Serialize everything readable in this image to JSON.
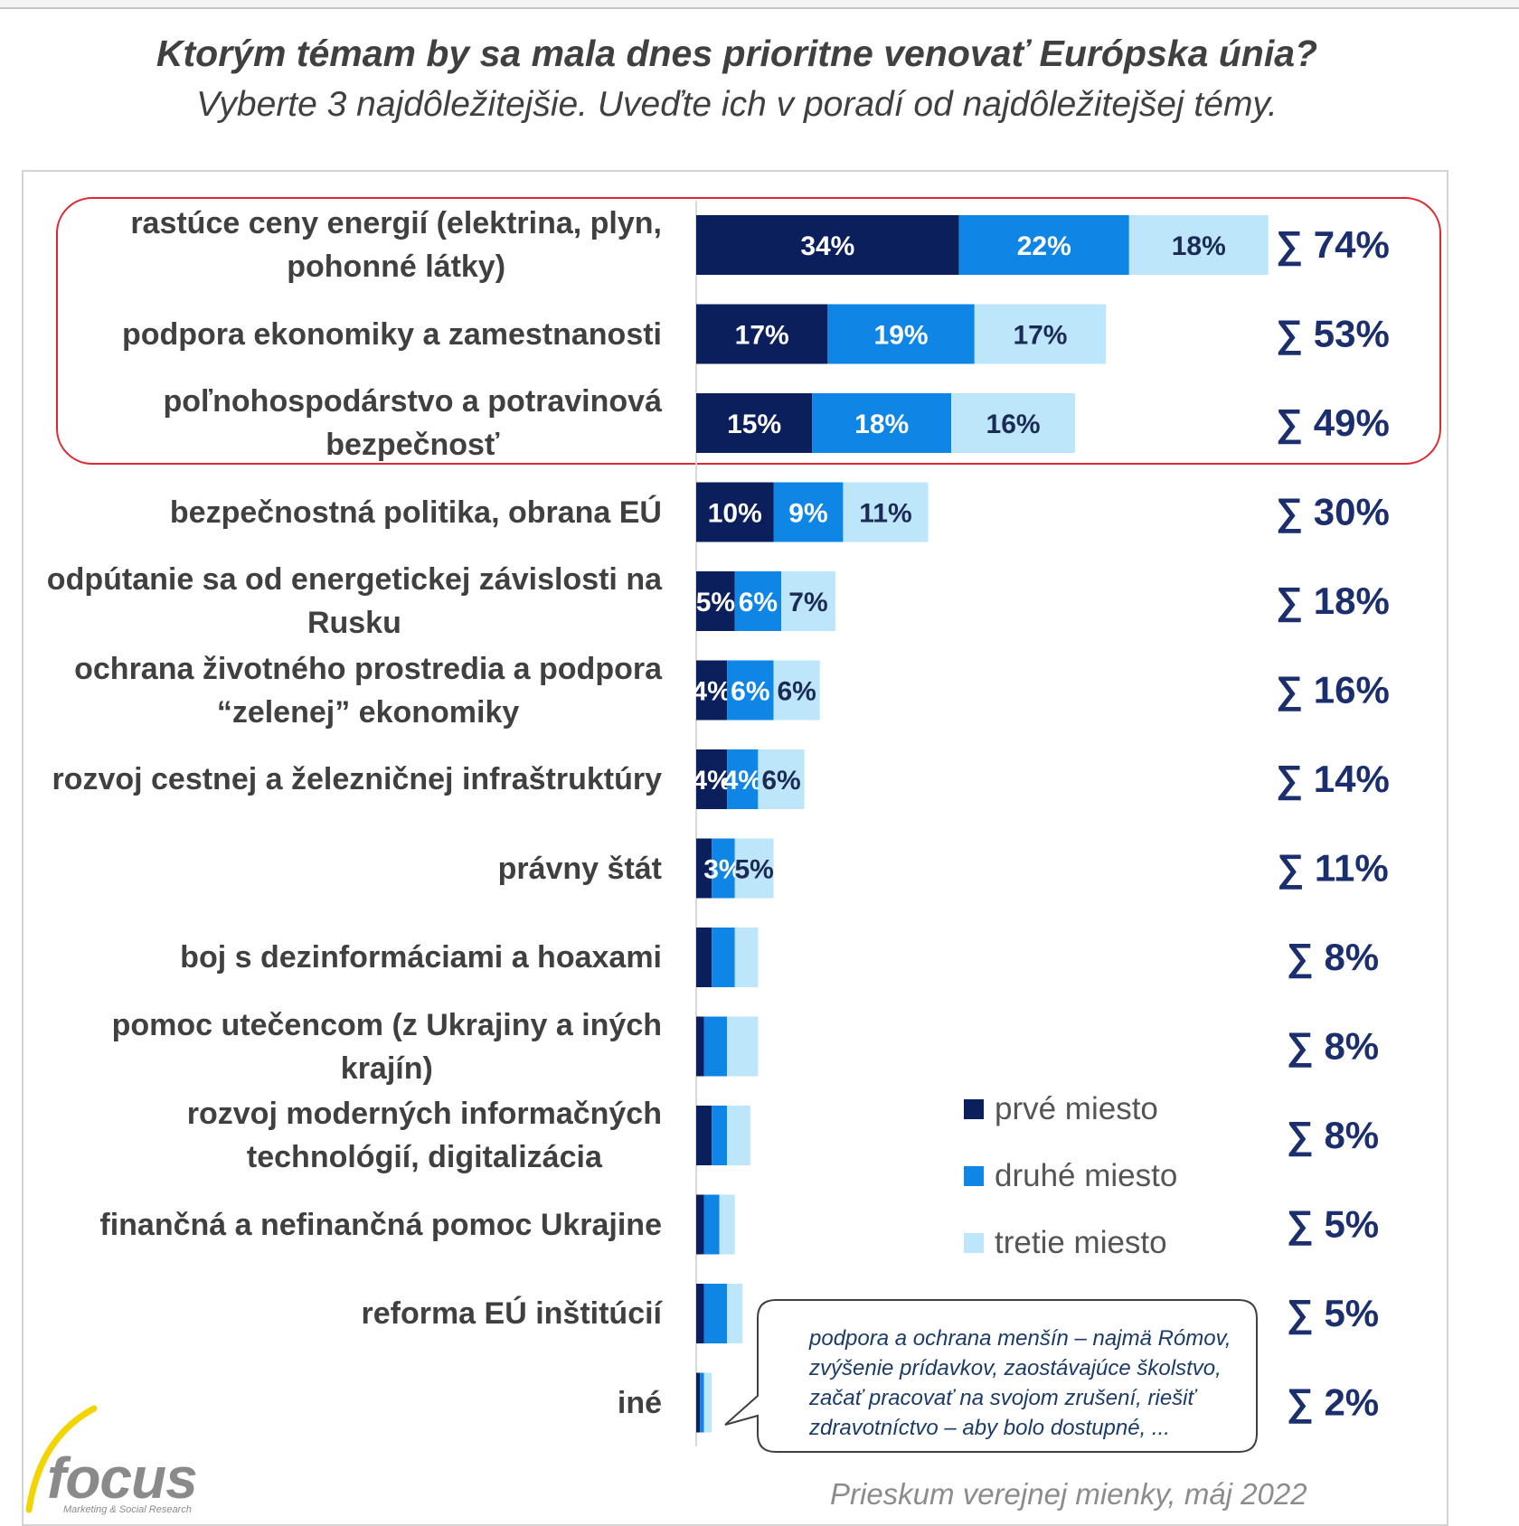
{
  "title": "Ktorým témam by sa mala dnes prioritne venovať Európska únia?",
  "subtitle": "Vyberte 3 najdôležitejšie. Uveďte ich v poradí od najdôležitejšej témy.",
  "colors": {
    "first": "#0b1f5c",
    "second": "#0f86e6",
    "third": "#bde6fb",
    "sum_text": "#1b2e6d",
    "highlight_border": "#e0262f"
  },
  "legend": [
    {
      "label": "prvé miesto",
      "color": "#0b1f5c"
    },
    {
      "label": "druhé miesto",
      "color": "#0f86e6"
    },
    {
      "label": "tretie miesto",
      "color": "#bde6fb"
    }
  ],
  "callout_text": "podpora a ochrana menšín – najmä Rómov, zvýšenie prídavkov, zaostávajúce školstvo, začať pracovať na svojom zrušení, riešiť zdravotníctvo – aby bolo dostupné, ...",
  "source": "Prieskum verejnej mienky, máj 2022",
  "logo": {
    "name": "focus",
    "tagline": "Marketing & Social Research"
  },
  "chart_data": {
    "type": "bar",
    "orientation": "horizontal",
    "stacked": true,
    "categories": [
      "rastúce ceny energií (elektrina, plyn, pohonné látky)",
      "podpora ekonomiky a zamestnanosti",
      "poľnohospodárstvo a potravinová bezpečnosť",
      "bezpečnostná politika, obrana EÚ",
      "odpútanie sa od energetickej závislosti na Rusku",
      "ochrana životného prostredia a podpora “zelenej” ekonomiky",
      "rozvoj cestnej a železničnej infraštruktúry",
      "právny štát",
      "boj s dezinformáciami a hoaxami",
      "pomoc utečencom (z Ukrajiny a iných krajín)",
      "rozvoj moderných informačných technológií, digitalizácia",
      "finančná a nefinančná pomoc Ukrajine",
      "reforma EÚ inštitúcií",
      "iné"
    ],
    "category_lines": [
      [
        "rastúce ceny energií (elektrina, plyn,",
        "pohonné látky)"
      ],
      [
        "podpora ekonomiky a zamestnanosti"
      ],
      [
        "poľnohospodárstvo a potravinová",
        "bezpečnosť"
      ],
      [
        "bezpečnostná politika, obrana EÚ"
      ],
      [
        "odpútanie sa od energetickej závislosti na",
        "Rusku"
      ],
      [
        "ochrana životného prostredia a podpora",
        "“zelenej” ekonomiky"
      ],
      [
        "rozvoj cestnej a železničnej infraštruktúry"
      ],
      [
        "právny štát"
      ],
      [
        "boj s dezinformáciami a hoaxami"
      ],
      [
        "pomoc utečencom (z Ukrajiny a iných",
        "krajín)"
      ],
      [
        "rozvoj moderných informačných",
        "technológií, digitalizácia"
      ],
      [
        "finančná a nefinančná pomoc Ukrajine"
      ],
      [
        "reforma EÚ inštitúcií"
      ],
      [
        "iné"
      ]
    ],
    "series": [
      {
        "name": "prvé miesto",
        "values": [
          34,
          17,
          15,
          10,
          5,
          4,
          4,
          2,
          2,
          1,
          2,
          1,
          1,
          0.5
        ]
      },
      {
        "name": "druhé miesto",
        "values": [
          22,
          19,
          18,
          9,
          6,
          6,
          4,
          3,
          3,
          3,
          2,
          2,
          3,
          0.5
        ]
      },
      {
        "name": "tretie miesto",
        "values": [
          18,
          17,
          16,
          11,
          7,
          6,
          6,
          5,
          3,
          4,
          3,
          2,
          2,
          1
        ]
      }
    ],
    "value_labels": [
      [
        "34%",
        "22%",
        "18%"
      ],
      [
        "17%",
        "19%",
        "17%"
      ],
      [
        "15%",
        "18%",
        "16%"
      ],
      [
        "10%",
        "9%",
        "11%"
      ],
      [
        "5%",
        "6%",
        "7%"
      ],
      [
        "4%",
        "6%",
        "6%"
      ],
      [
        "4%",
        "4%",
        "6%"
      ],
      [
        "",
        "3%",
        "5%"
      ],
      [
        "",
        "",
        ""
      ],
      [
        "",
        "",
        ""
      ],
      [
        "",
        "",
        ""
      ],
      [
        "",
        "",
        ""
      ],
      [
        "",
        "",
        ""
      ],
      [
        "",
        "",
        ""
      ]
    ],
    "sums": [
      "∑ 74%",
      "∑ 53%",
      "∑ 49%",
      "∑ 30%",
      "∑ 18%",
      "∑ 16%",
      "∑ 14%",
      "∑ 11%",
      "∑ 8%",
      "∑ 8%",
      "∑ 8%",
      "∑ 5%",
      "∑ 5%",
      "∑ 2%"
    ],
    "highlighted_categories": [
      0,
      1,
      2
    ],
    "xlim": [
      0,
      75
    ],
    "legend_position": "bottom-right"
  }
}
